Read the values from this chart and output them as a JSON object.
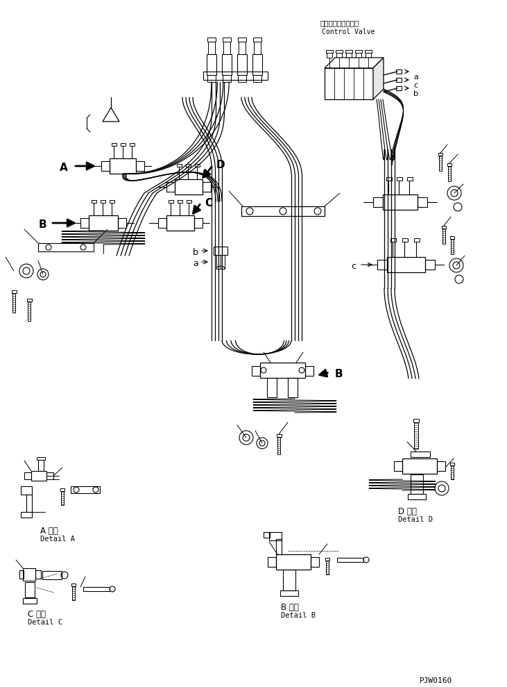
{
  "title": "",
  "background_color": "#ffffff",
  "line_color": "#000000",
  "text_color": "#000000",
  "page_code": "PJW0160",
  "labels": {
    "control_valve_jp": "コントロールバルブ",
    "control_valve_en": "Control Valve",
    "detail_a_jp": "A 詳細",
    "detail_a_en": "Detail A",
    "detail_b_jp": "B 詳細",
    "detail_b_en": "Detail B",
    "detail_c_jp": "C 詳細",
    "detail_c_en": "Detail C",
    "detail_d_jp": "D 詳細",
    "detail_d_en": "Detail D"
  },
  "figsize": [
    7.31,
    9.89
  ],
  "dpi": 100
}
